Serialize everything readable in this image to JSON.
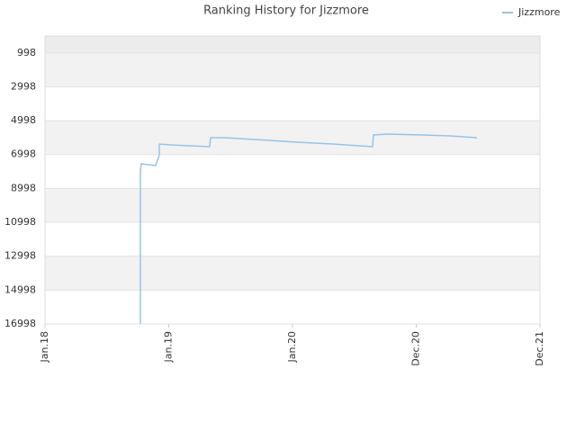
{
  "chart_data": {
    "type": "line",
    "title": "Ranking History for Jizzmore",
    "xlim": [
      0,
      48
    ],
    "xticks": [
      {
        "value": 0,
        "label": "Jan.18"
      },
      {
        "value": 12,
        "label": "Jan.19"
      },
      {
        "value": 24,
        "label": "Jan.20"
      },
      {
        "value": 36,
        "label": "Dec.20"
      },
      {
        "value": 48,
        "label": "Dec.21"
      }
    ],
    "ylim": [
      16998,
      0
    ],
    "yticks": [
      998,
      2998,
      4998,
      6998,
      8998,
      10998,
      12998,
      14998,
      16998
    ],
    "legend": "top-right",
    "series": [
      {
        "name": "Jizzmore",
        "color": "#92c5ec",
        "x": [
          9.25,
          9.25,
          9.34,
          10.73,
          11.08,
          11.08,
          12.22,
          15.97,
          16.06,
          17.45,
          21.82,
          24.44,
          27.93,
          31.77,
          31.85,
          33.16,
          36.65,
          39.27,
          41.89
        ],
        "values": [
          16998,
          7968,
          7543,
          7649,
          7012,
          6374,
          6427,
          6534,
          6002,
          6002,
          6162,
          6268,
          6374,
          6534,
          5843,
          5790,
          5843,
          5896,
          6002
        ]
      }
    ]
  }
}
